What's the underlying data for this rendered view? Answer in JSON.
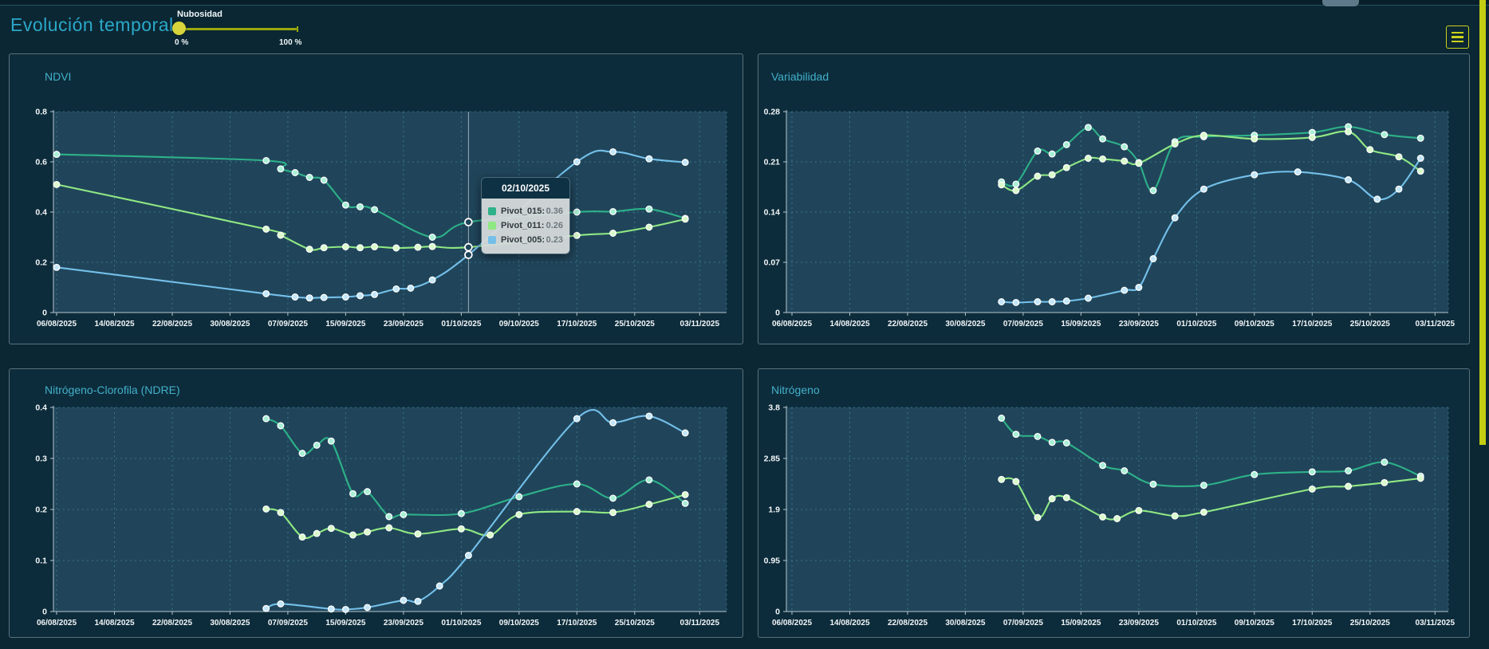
{
  "header": {
    "title": "Evolución temporal",
    "slider": {
      "label": "Nubosidad",
      "min_label": "0 %",
      "max_label": "100 %",
      "value_percent": 0
    },
    "menu_button": {
      "icon": "hamburger-icon",
      "color": "#c9d21a"
    }
  },
  "theme": {
    "page_bg": "#0b2734",
    "panel_bg": "#0d2c3b",
    "plot_bg": "#20455a",
    "grid_color": "#4a9ab5",
    "axis_color": "#b6c6ce",
    "tick_text": "#f2f6f8",
    "panel_title_color": "#41b0ca",
    "accent_yellow": "#c3cd11"
  },
  "tooltip": {
    "date": "02/10/2025",
    "rows": [
      {
        "label": "Pivot_015:",
        "value": "0.36",
        "color": "#2db189"
      },
      {
        "label": "Pivot_011:",
        "value": "0.26",
        "color": "#90e883"
      },
      {
        "label": "Pivot_005:",
        "value": "0.23",
        "color": "#74c0ea"
      }
    ]
  },
  "hover": {
    "chart_index": 0,
    "day": 57,
    "date": "02/10/2025"
  },
  "chart_data": [
    {
      "id": "ndvi",
      "type": "line",
      "title": "NDVI",
      "x_tick_labels": [
        "06/08/2025",
        "14/08/2025",
        "22/08/2025",
        "30/08/2025",
        "07/09/2025",
        "15/09/2025",
        "23/09/2025",
        "01/10/2025",
        "09/10/2025",
        "17/10/2025",
        "25/10/2025",
        "03/11/2025"
      ],
      "x_tick_days": [
        0,
        8,
        16,
        24,
        32,
        40,
        48,
        56,
        64,
        72,
        80,
        89
      ],
      "ylim": [
        0,
        0.8
      ],
      "yticks": [
        0,
        0.2,
        0.4,
        0.6,
        0.8
      ],
      "grid": "dashed",
      "legend": "none",
      "series": [
        {
          "name": "Pivot_015",
          "color": "#2db189",
          "marker_fill": "#a9efd6",
          "points": [
            [
              0,
              0.63
            ],
            [
              29,
              0.605
            ],
            [
              31,
              0.572
            ],
            [
              33,
              0.557
            ],
            [
              35,
              0.538
            ],
            [
              37,
              0.527
            ],
            [
              40,
              0.428
            ],
            [
              42,
              0.421
            ],
            [
              44,
              0.41
            ],
            [
              52,
              0.3
            ],
            [
              57,
              0.36
            ],
            [
              72,
              0.4
            ],
            [
              77,
              0.402
            ],
            [
              82,
              0.412
            ],
            [
              87,
              0.375
            ]
          ]
        },
        {
          "name": "Pivot_011",
          "color": "#90e883",
          "marker_fill": "#d8fbc9",
          "points": [
            [
              0,
              0.51
            ],
            [
              29,
              0.332
            ],
            [
              31,
              0.308
            ],
            [
              35,
              0.252
            ],
            [
              37,
              0.258
            ],
            [
              40,
              0.262
            ],
            [
              42,
              0.258
            ],
            [
              44,
              0.262
            ],
            [
              47,
              0.257
            ],
            [
              50,
              0.26
            ],
            [
              52,
              0.263
            ],
            [
              57,
              0.26
            ],
            [
              72,
              0.307
            ],
            [
              77,
              0.316
            ],
            [
              82,
              0.34
            ],
            [
              87,
              0.372
            ]
          ]
        },
        {
          "name": "Pivot_005",
          "color": "#74c0ea",
          "marker_fill": "#c4e6f9",
          "points": [
            [
              0,
              0.18
            ],
            [
              29,
              0.075
            ],
            [
              33,
              0.062
            ],
            [
              35,
              0.058
            ],
            [
              37,
              0.06
            ],
            [
              40,
              0.062
            ],
            [
              42,
              0.067
            ],
            [
              44,
              0.072
            ],
            [
              47,
              0.094
            ],
            [
              49,
              0.097
            ],
            [
              52,
              0.13
            ],
            [
              57,
              0.23
            ],
            [
              72,
              0.6
            ],
            [
              77,
              0.64
            ],
            [
              82,
              0.612
            ],
            [
              87,
              0.598
            ]
          ]
        }
      ]
    },
    {
      "id": "variabilidad",
      "type": "line",
      "title": "Variabilidad",
      "x_tick_labels": [
        "06/08/2025",
        "14/08/2025",
        "22/08/2025",
        "30/08/2025",
        "07/09/2025",
        "15/09/2025",
        "23/09/2025",
        "01/10/2025",
        "09/10/2025",
        "17/10/2025",
        "25/10/2025",
        "03/11/2025"
      ],
      "x_tick_days": [
        0,
        8,
        16,
        24,
        32,
        40,
        48,
        56,
        64,
        72,
        80,
        89
      ],
      "ylim": [
        0,
        0.28
      ],
      "yticks": [
        0,
        0.07,
        0.14,
        0.21,
        0.28
      ],
      "grid": "dashed",
      "legend": "none",
      "series": [
        {
          "name": "Pivot_015",
          "color": "#2db189",
          "marker_fill": "#a9efd6",
          "points": [
            [
              29,
              0.182
            ],
            [
              31,
              0.179
            ],
            [
              34,
              0.225
            ],
            [
              36,
              0.221
            ],
            [
              38,
              0.234
            ],
            [
              41,
              0.258
            ],
            [
              43,
              0.242
            ],
            [
              46,
              0.231
            ],
            [
              48,
              0.209
            ],
            [
              50,
              0.17
            ],
            [
              53,
              0.238
            ],
            [
              57,
              0.245
            ],
            [
              64,
              0.247
            ],
            [
              72,
              0.251
            ],
            [
              77,
              0.259
            ],
            [
              82,
              0.248
            ],
            [
              87,
              0.243
            ]
          ]
        },
        {
          "name": "Pivot_011",
          "color": "#90e883",
          "marker_fill": "#d8fbc9",
          "points": [
            [
              29,
              0.178
            ],
            [
              31,
              0.17
            ],
            [
              34,
              0.19
            ],
            [
              36,
              0.192
            ],
            [
              38,
              0.202
            ],
            [
              41,
              0.215
            ],
            [
              43,
              0.214
            ],
            [
              46,
              0.211
            ],
            [
              48,
              0.208
            ],
            [
              53,
              0.235
            ],
            [
              57,
              0.247
            ],
            [
              64,
              0.242
            ],
            [
              72,
              0.244
            ],
            [
              77,
              0.252
            ],
            [
              80,
              0.227
            ],
            [
              84,
              0.217
            ],
            [
              87,
              0.197
            ]
          ]
        },
        {
          "name": "Pivot_005",
          "color": "#74c0ea",
          "marker_fill": "#c4e6f9",
          "points": [
            [
              29,
              0.015
            ],
            [
              31,
              0.014
            ],
            [
              34,
              0.015
            ],
            [
              36,
              0.015
            ],
            [
              38,
              0.016
            ],
            [
              41,
              0.02
            ],
            [
              46,
              0.031
            ],
            [
              48,
              0.035
            ],
            [
              50,
              0.075
            ],
            [
              53,
              0.132
            ],
            [
              57,
              0.172
            ],
            [
              64,
              0.192
            ],
            [
              70,
              0.196
            ],
            [
              77,
              0.185
            ],
            [
              81,
              0.158
            ],
            [
              84,
              0.172
            ],
            [
              87,
              0.215
            ]
          ]
        }
      ]
    },
    {
      "id": "ndre",
      "type": "line",
      "title": "Nitrógeno-Clorofila (NDRE)",
      "x_tick_labels": [
        "06/08/2025",
        "14/08/2025",
        "22/08/2025",
        "30/08/2025",
        "07/09/2025",
        "15/09/2025",
        "23/09/2025",
        "01/10/2025",
        "09/10/2025",
        "17/10/2025",
        "25/10/2025",
        "03/11/2025"
      ],
      "x_tick_days": [
        0,
        8,
        16,
        24,
        32,
        40,
        48,
        56,
        64,
        72,
        80,
        89
      ],
      "ylim": [
        0,
        0.4
      ],
      "yticks": [
        0,
        0.1,
        0.2,
        0.3,
        0.4
      ],
      "grid": "dashed",
      "legend": "none",
      "series": [
        {
          "name": "Pivot_015",
          "color": "#2db189",
          "marker_fill": "#a9efd6",
          "points": [
            [
              29,
              0.378
            ],
            [
              31,
              0.364
            ],
            [
              34,
              0.31
            ],
            [
              36,
              0.326
            ],
            [
              38,
              0.334
            ],
            [
              41,
              0.231
            ],
            [
              43,
              0.235
            ],
            [
              46,
              0.186
            ],
            [
              48,
              0.19
            ],
            [
              56,
              0.192
            ],
            [
              64,
              0.225
            ],
            [
              72,
              0.25
            ],
            [
              77,
              0.222
            ],
            [
              82,
              0.258
            ],
            [
              87,
              0.212
            ]
          ]
        },
        {
          "name": "Pivot_011",
          "color": "#90e883",
          "marker_fill": "#d8fbc9",
          "points": [
            [
              29,
              0.201
            ],
            [
              31,
              0.194
            ],
            [
              34,
              0.146
            ],
            [
              36,
              0.153
            ],
            [
              38,
              0.163
            ],
            [
              41,
              0.15
            ],
            [
              43,
              0.156
            ],
            [
              46,
              0.164
            ],
            [
              50,
              0.152
            ],
            [
              56,
              0.162
            ],
            [
              60,
              0.15
            ],
            [
              64,
              0.19
            ],
            [
              72,
              0.196
            ],
            [
              77,
              0.194
            ],
            [
              82,
              0.21
            ],
            [
              87,
              0.229
            ]
          ]
        },
        {
          "name": "Pivot_005",
          "color": "#74c0ea",
          "marker_fill": "#c4e6f9",
          "points": [
            [
              29,
              0.006
            ],
            [
              31,
              0.015
            ],
            [
              38,
              0.005
            ],
            [
              40,
              0.004
            ],
            [
              43,
              0.008
            ],
            [
              48,
              0.022
            ],
            [
              50,
              0.02
            ],
            [
              53,
              0.05
            ],
            [
              57,
              0.11
            ],
            [
              72,
              0.378
            ],
            [
              77,
              0.37
            ],
            [
              82,
              0.383
            ],
            [
              87,
              0.35
            ]
          ]
        }
      ]
    },
    {
      "id": "nitrogeno",
      "type": "line",
      "title": "Nitrógeno",
      "x_tick_labels": [
        "06/08/2025",
        "14/08/2025",
        "22/08/2025",
        "30/08/2025",
        "07/09/2025",
        "15/09/2025",
        "23/09/2025",
        "01/10/2025",
        "09/10/2025",
        "17/10/2025",
        "25/10/2025",
        "03/11/2025"
      ],
      "x_tick_days": [
        0,
        8,
        16,
        24,
        32,
        40,
        48,
        56,
        64,
        72,
        80,
        89
      ],
      "ylim": [
        0,
        3.8
      ],
      "yticks": [
        0,
        0.95,
        1.9,
        2.85,
        3.8
      ],
      "grid": "dashed",
      "legend": "none",
      "series": [
        {
          "name": "Pivot_015",
          "color": "#2db189",
          "marker_fill": "#a9efd6",
          "points": [
            [
              29,
              3.6
            ],
            [
              31,
              3.3
            ],
            [
              34,
              3.26
            ],
            [
              36,
              3.15
            ],
            [
              38,
              3.14
            ],
            [
              43,
              2.72
            ],
            [
              46,
              2.62
            ],
            [
              50,
              2.37
            ],
            [
              57,
              2.35
            ],
            [
              64,
              2.55
            ],
            [
              72,
              2.6
            ],
            [
              77,
              2.62
            ],
            [
              82,
              2.78
            ],
            [
              87,
              2.52
            ]
          ]
        },
        {
          "name": "Pivot_011",
          "color": "#90e883",
          "marker_fill": "#d8fbc9",
          "points": [
            [
              29,
              2.46
            ],
            [
              31,
              2.42
            ],
            [
              34,
              1.75
            ],
            [
              36,
              2.1
            ],
            [
              38,
              2.12
            ],
            [
              43,
              1.76
            ],
            [
              45,
              1.73
            ],
            [
              48,
              1.88
            ],
            [
              53,
              1.78
            ],
            [
              57,
              1.85
            ],
            [
              72,
              2.28
            ],
            [
              77,
              2.33
            ],
            [
              82,
              2.4
            ],
            [
              87,
              2.48
            ]
          ]
        }
      ]
    }
  ]
}
